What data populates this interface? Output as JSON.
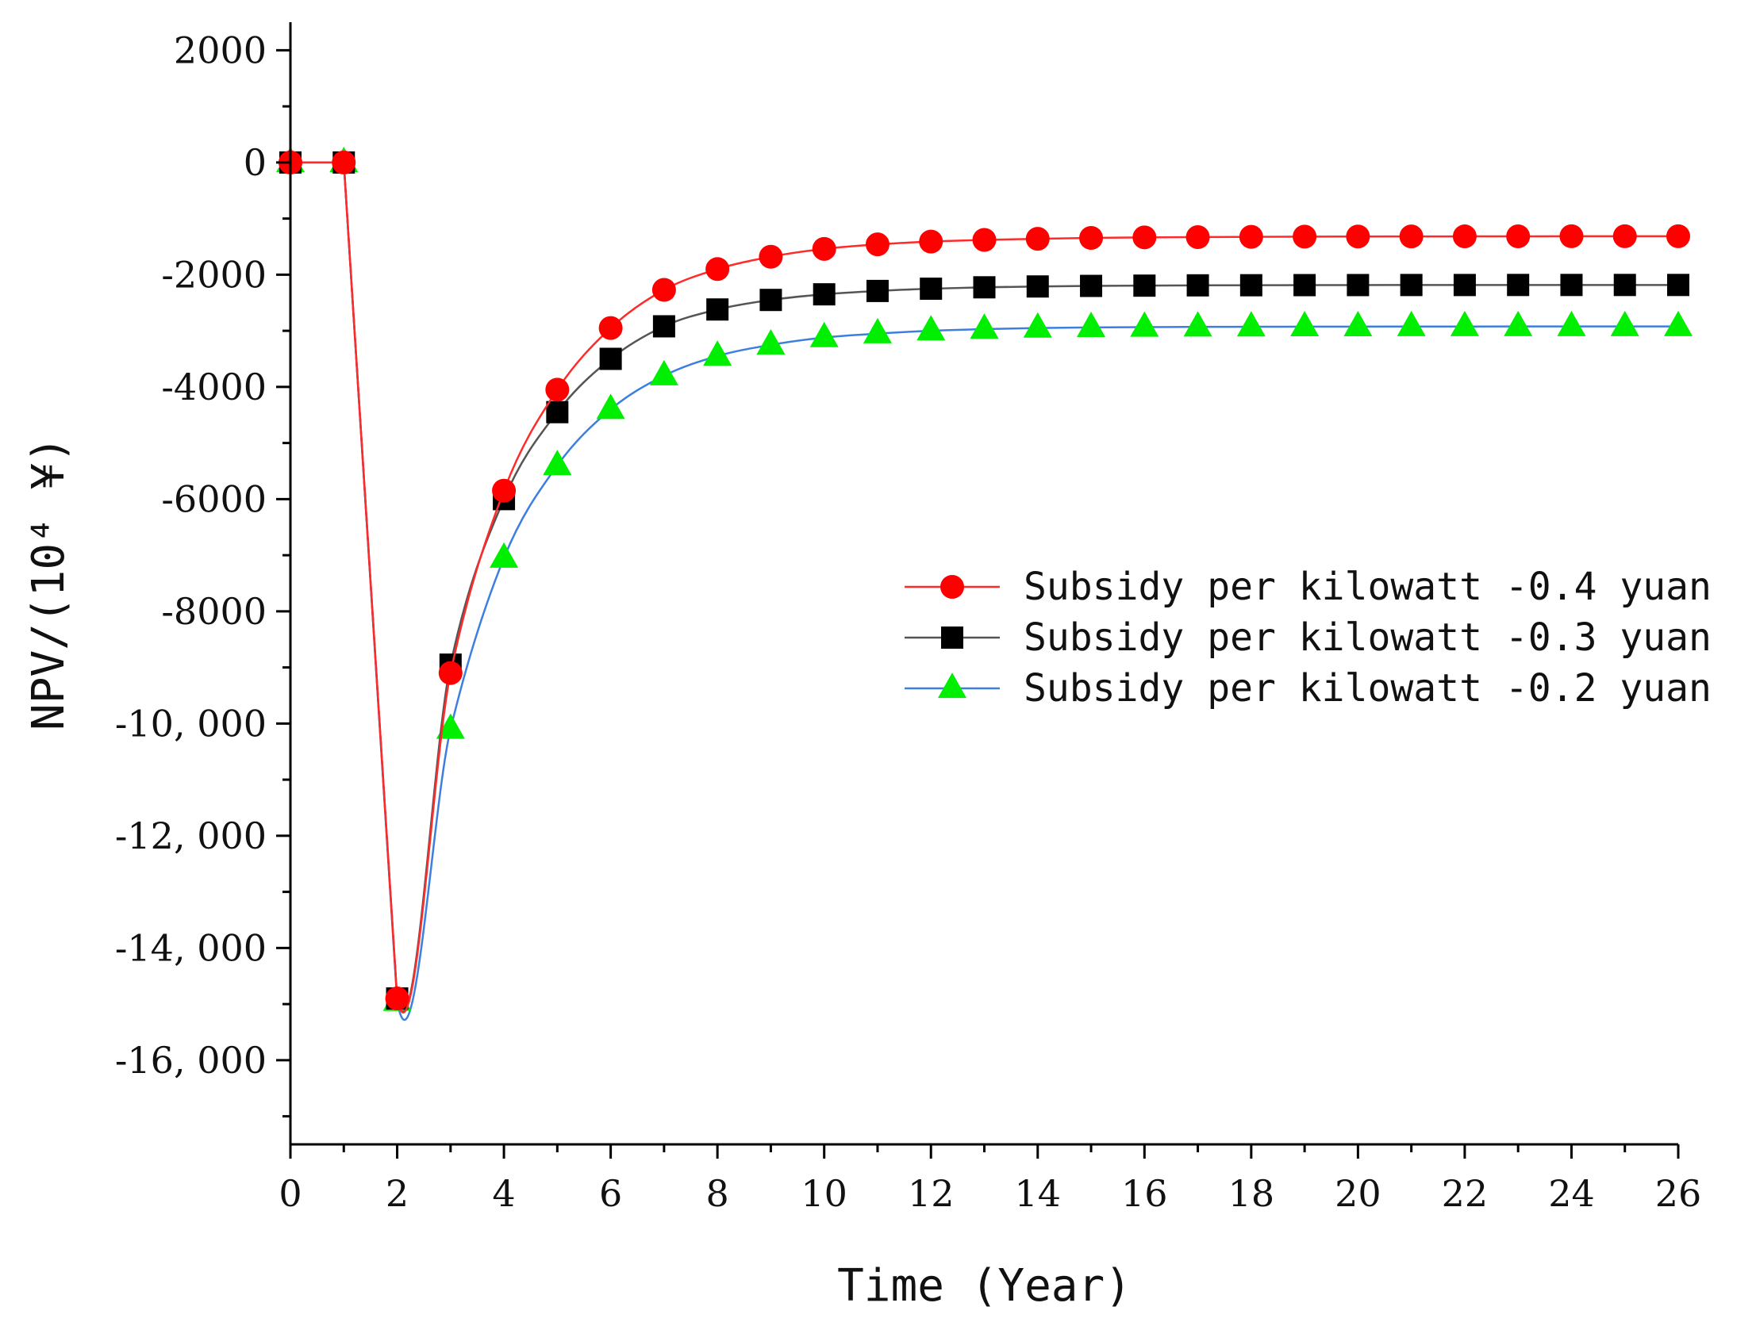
{
  "chart_data": {
    "type": "line",
    "title": "",
    "xlabel": "Time (Year)",
    "ylabel": "NPV/(10⁴ ¥)",
    "xlim": [
      0,
      26
    ],
    "ylim": [
      -17500,
      2500
    ],
    "x_major_ticks": [
      0,
      2,
      4,
      6,
      8,
      10,
      12,
      14,
      16,
      18,
      20,
      22,
      24,
      26
    ],
    "x_tick_labels": [
      "0",
      "2",
      "4",
      "6",
      "8",
      "10",
      "12",
      "14",
      "16",
      "18",
      "20",
      "22",
      "24",
      "26"
    ],
    "y_major_ticks": [
      2000,
      0,
      -2000,
      -4000,
      -6000,
      -8000,
      -10000,
      -12000,
      -14000,
      -16000
    ],
    "y_tick_labels": [
      "2000",
      "0",
      "-2000",
      "-4000",
      "-6000",
      "-8000",
      "-10, 000",
      "-12, 000",
      "-14, 000",
      "-16, 000"
    ],
    "grid": false,
    "legend_position": "right-center",
    "x": [
      0,
      1,
      2,
      3,
      4,
      5,
      6,
      7,
      8,
      9,
      10,
      11,
      12,
      13,
      14,
      15,
      16,
      17,
      18,
      19,
      20,
      21,
      22,
      23,
      24,
      25,
      26
    ],
    "series": [
      {
        "name": "Subsidy per kilowatt -0.4 yuan",
        "color": "#ff2a2a",
        "marker_fill": "#ff0000",
        "marker": "circle",
        "values": [
          0,
          0,
          -14900,
          -9100,
          -5850,
          -4050,
          -2950,
          -2270,
          -1900,
          -1680,
          -1540,
          -1460,
          -1410,
          -1380,
          -1360,
          -1345,
          -1335,
          -1330,
          -1325,
          -1322,
          -1320,
          -1318,
          -1317,
          -1316,
          -1315,
          -1315,
          -1315
        ]
      },
      {
        "name": "Subsidy per kilowatt -0.3 yuan",
        "color": "#555555",
        "marker_fill": "#000000",
        "marker": "square",
        "values": [
          0,
          0,
          -14900,
          -8950,
          -6000,
          -4450,
          -3500,
          -2920,
          -2620,
          -2450,
          -2350,
          -2290,
          -2250,
          -2225,
          -2210,
          -2200,
          -2195,
          -2190,
          -2188,
          -2186,
          -2185,
          -2184,
          -2184,
          -2183,
          -2183,
          -2183,
          -2183
        ]
      },
      {
        "name": "Subsidy per kilowatt -0.2 yuan",
        "color": "#3d7fe0",
        "marker_fill": "#00ee00",
        "marker": "triangle",
        "values": [
          0,
          0,
          -14950,
          -10100,
          -7050,
          -5400,
          -4400,
          -3800,
          -3450,
          -3250,
          -3120,
          -3050,
          -3000,
          -2970,
          -2950,
          -2940,
          -2935,
          -2930,
          -2928,
          -2926,
          -2925,
          -2924,
          -2924,
          -2923,
          -2923,
          -2923,
          -2923
        ]
      }
    ]
  }
}
